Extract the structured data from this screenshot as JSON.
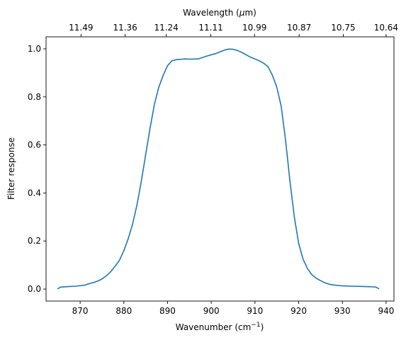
{
  "chart_data": {
    "type": "line",
    "xlabel": "Wavenumber (cm",
    "xlabel_sup": "−1",
    "xlabel_end": ")",
    "ylabel": "Filter response",
    "top_label": "Wavelength (",
    "top_label_mu": "μ",
    "top_label_end": "m)",
    "xlim": [
      862.2,
      941.8
    ],
    "ylim": [
      -0.05,
      1.05
    ],
    "x_ticks": [
      870,
      880,
      890,
      900,
      910,
      920,
      930,
      940
    ],
    "y_ticks": [
      0.0,
      0.2,
      0.4,
      0.6,
      0.8,
      1.0
    ],
    "y_tick_labels": [
      "0.0",
      "0.2",
      "0.4",
      "0.6",
      "0.8",
      "1.0"
    ],
    "top_ticks": [
      {
        "x": 870.2,
        "label": "11.49"
      },
      {
        "x": 880.3,
        "label": "11.36"
      },
      {
        "x": 889.7,
        "label": "11.24"
      },
      {
        "x": 899.9,
        "label": "11.11"
      },
      {
        "x": 909.9,
        "label": "10.99"
      },
      {
        "x": 920.1,
        "label": "10.87"
      },
      {
        "x": 930.2,
        "label": "10.75"
      },
      {
        "x": 940.0,
        "label": "10.64"
      }
    ],
    "line_color": "#1f77b4",
    "series": [
      {
        "x": [
          864.8,
          865.5,
          867,
          869,
          871,
          872,
          873,
          874,
          875,
          876,
          877,
          878,
          879,
          880,
          881,
          882,
          883,
          884,
          885,
          886,
          887,
          888,
          889,
          890,
          891,
          892,
          894,
          895,
          897,
          899,
          901,
          903,
          904,
          905,
          906,
          907,
          908,
          909,
          910,
          911,
          912,
          913,
          914,
          915,
          916,
          917,
          918,
          919,
          920,
          921,
          922,
          923,
          924,
          925,
          926,
          927,
          928,
          929,
          930,
          932,
          934,
          936,
          937,
          937.7,
          938.4
        ],
        "y": [
          0.0,
          0.008,
          0.01,
          0.012,
          0.016,
          0.022,
          0.027,
          0.033,
          0.042,
          0.055,
          0.072,
          0.095,
          0.12,
          0.16,
          0.21,
          0.27,
          0.35,
          0.45,
          0.56,
          0.67,
          0.77,
          0.84,
          0.89,
          0.93,
          0.95,
          0.955,
          0.958,
          0.957,
          0.958,
          0.97,
          0.98,
          0.995,
          0.999,
          0.998,
          0.993,
          0.985,
          0.975,
          0.965,
          0.958,
          0.95,
          0.94,
          0.925,
          0.89,
          0.84,
          0.76,
          0.62,
          0.45,
          0.3,
          0.19,
          0.125,
          0.085,
          0.06,
          0.045,
          0.035,
          0.026,
          0.02,
          0.017,
          0.015,
          0.013,
          0.012,
          0.011,
          0.01,
          0.009,
          0.008,
          0.0
        ]
      }
    ]
  }
}
